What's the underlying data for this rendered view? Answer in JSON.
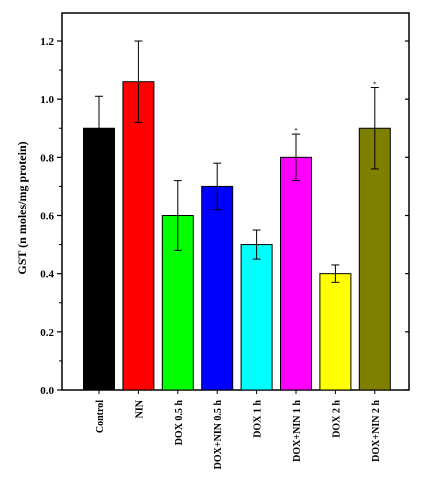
{
  "chart_data": {
    "type": "bar",
    "title": "",
    "xlabel": "",
    "ylabel": "GST (n moles/mg protein)",
    "ylim": [
      0.0,
      1.3
    ],
    "yticks": [
      "0.0",
      "0.2",
      "0.4",
      "0.6",
      "0.8",
      "1.0",
      "1.2"
    ],
    "grid": false,
    "categories": [
      "Control",
      "NIN",
      "DOX 0.5 h",
      "DOX+NIN 0.5 h",
      "DOX 1 h",
      "DOX+NIN 1 h",
      "DOX 2 h",
      "DOX+NIN 2 h"
    ],
    "values": [
      0.9,
      1.06,
      0.6,
      0.7,
      0.5,
      0.8,
      0.4,
      0.9
    ],
    "errors": [
      0.11,
      0.14,
      0.12,
      0.08,
      0.05,
      0.08,
      0.03,
      0.14
    ],
    "colors": [
      "#000000",
      "#ff0000",
      "#00ff00",
      "#0000ff",
      "#00ffff",
      "#ff00ff",
      "#ffff00",
      "#808000"
    ],
    "annotations": [
      {
        "category": "DOX+NIN 1 h",
        "text": "*"
      },
      {
        "category": "DOX+NIN 2 h",
        "text": "*"
      }
    ]
  }
}
